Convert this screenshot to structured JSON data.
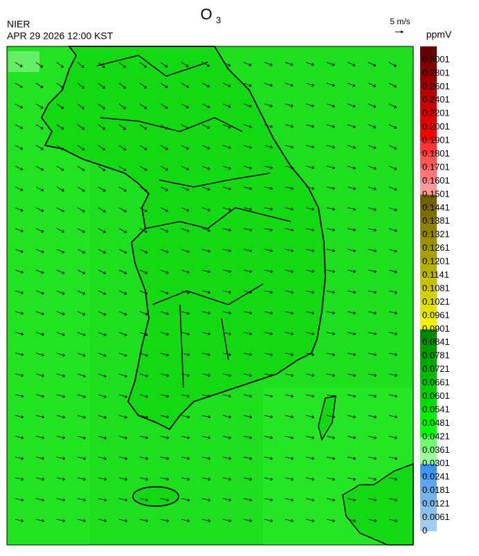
{
  "header": {
    "title": "O",
    "title_subscript": "3",
    "org": "NIER",
    "datetime": "APR 29 2026 12:00 KST"
  },
  "wind_scale": {
    "label": "5 m/s"
  },
  "colorbar": {
    "unit": "ppmV",
    "levels": [
      0,
      0.0061,
      0.0121,
      0.0181,
      0.0241,
      0.0301,
      0.0361,
      0.0421,
      0.0481,
      0.0541,
      0.0601,
      0.0661,
      0.0721,
      0.0781,
      0.0841,
      0.0901,
      0.0961,
      0.1021,
      0.1081,
      0.1141,
      0.1201,
      0.1261,
      0.1321,
      0.1381,
      0.1441,
      0.1501,
      0.1601,
      0.1701,
      0.1801,
      0.1901,
      0.2001,
      0.2201,
      0.2401,
      0.2601,
      0.2801,
      0.3001
    ],
    "colors": [
      "#a2cdee",
      "#8cc0ec",
      "#76b3ea",
      "#5fa6ee",
      "#3b96f3",
      "#99ff99",
      "#70ff70",
      "#00ff00",
      "#00ee00",
      "#00dd00",
      "#00cc00",
      "#00bb00",
      "#00aa00",
      "#009900",
      "#008800",
      "#f2f200",
      "#e0e000",
      "#d2d000",
      "#c4c000",
      "#b6b000",
      "#a8a000",
      "#9a9000",
      "#8c8000",
      "#7e7000",
      "#706000",
      "#ff9999",
      "#ff7777",
      "#ff5555",
      "#ff3333",
      "#ff0000",
      "#e60000",
      "#cc0000",
      "#b30000",
      "#990000",
      "#800000",
      "#660000"
    ]
  }
}
